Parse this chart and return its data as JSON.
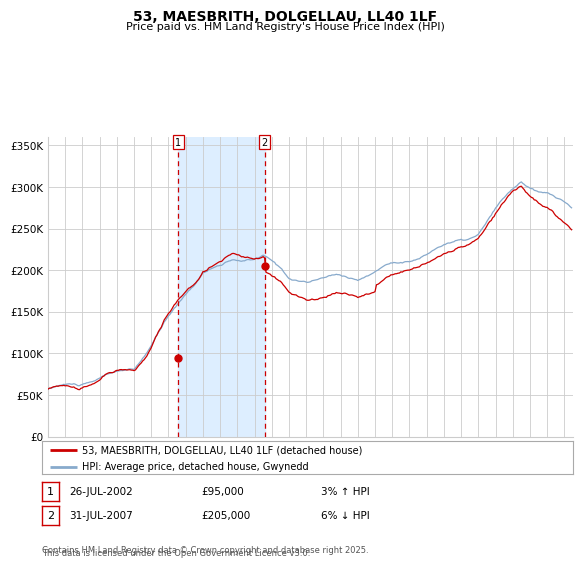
{
  "title": "53, MAESBRITH, DOLGELLAU, LL40 1LF",
  "subtitle": "Price paid vs. HM Land Registry's House Price Index (HPI)",
  "legend_line1": "53, MAESBRITH, DOLGELLAU, LL40 1LF (detached house)",
  "legend_line2": "HPI: Average price, detached house, Gwynedd",
  "marker1_date": "26-JUL-2002",
  "marker1_price": 95000,
  "marker1_label": "3% ↑ HPI",
  "marker2_date": "31-JUL-2007",
  "marker2_price": 205000,
  "marker2_label": "6% ↓ HPI",
  "footnote1": "Contains HM Land Registry data © Crown copyright and database right 2025.",
  "footnote2": "This data is licensed under the Open Government Licence v3.0.",
  "xmin": 1995.0,
  "xmax": 2025.5,
  "ymin": 0,
  "ymax": 360000,
  "yticks": [
    0,
    50000,
    100000,
    150000,
    200000,
    250000,
    300000,
    350000
  ],
  "ytick_labels": [
    "£0",
    "£50K",
    "£100K",
    "£150K",
    "£200K",
    "£250K",
    "£300K",
    "£350K"
  ],
  "line_red_color": "#cc0000",
  "line_blue_color": "#88aacc",
  "shaded_region_color": "#ddeeff",
  "marker1_x": 2002.57,
  "marker2_x": 2007.58,
  "grid_color": "#cccccc",
  "bg_color": "#ffffff",
  "border_color": "#aaaaaa"
}
